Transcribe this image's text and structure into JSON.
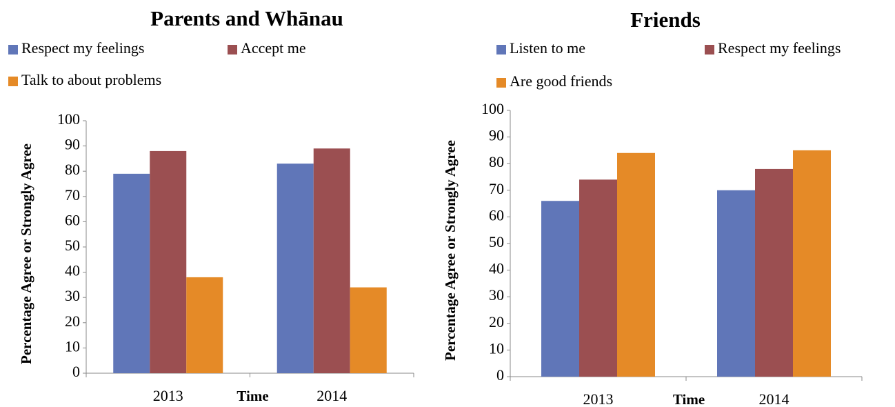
{
  "chart_data": [
    {
      "type": "bar",
      "title": "Parents and Whānau",
      "xlabel": "Time",
      "ylabel": "Percentage Agree or Strongly Agree",
      "categories": [
        "2013",
        "2014"
      ],
      "series": [
        {
          "name": "Respect my feelings",
          "color": "#6076b8",
          "values": [
            79,
            83
          ]
        },
        {
          "name": "Accept me",
          "color": "#9b4f51",
          "values": [
            88,
            89
          ]
        },
        {
          "name": "Talk to about problems",
          "color": "#e58a27",
          "values": [
            38,
            34
          ]
        }
      ],
      "ylim": [
        0,
        100
      ],
      "yticks": [
        0,
        10,
        20,
        30,
        40,
        50,
        60,
        70,
        80,
        90,
        100
      ],
      "grid": false
    },
    {
      "type": "bar",
      "title": "Friends",
      "xlabel": "Time",
      "ylabel": "Percentage Agree or Strongly Agree",
      "categories": [
        "2013",
        "2014"
      ],
      "series": [
        {
          "name": "Listen to me",
          "color": "#6076b8",
          "values": [
            66,
            70
          ]
        },
        {
          "name": "Respect my feelings",
          "color": "#9b4f51",
          "values": [
            74,
            78
          ]
        },
        {
          "name": "Are good friends",
          "color": "#e58a27",
          "values": [
            84,
            85
          ]
        }
      ],
      "ylim": [
        0,
        100
      ],
      "yticks": [
        0,
        10,
        20,
        30,
        40,
        50,
        60,
        70,
        80,
        90,
        100
      ],
      "grid": false
    }
  ]
}
